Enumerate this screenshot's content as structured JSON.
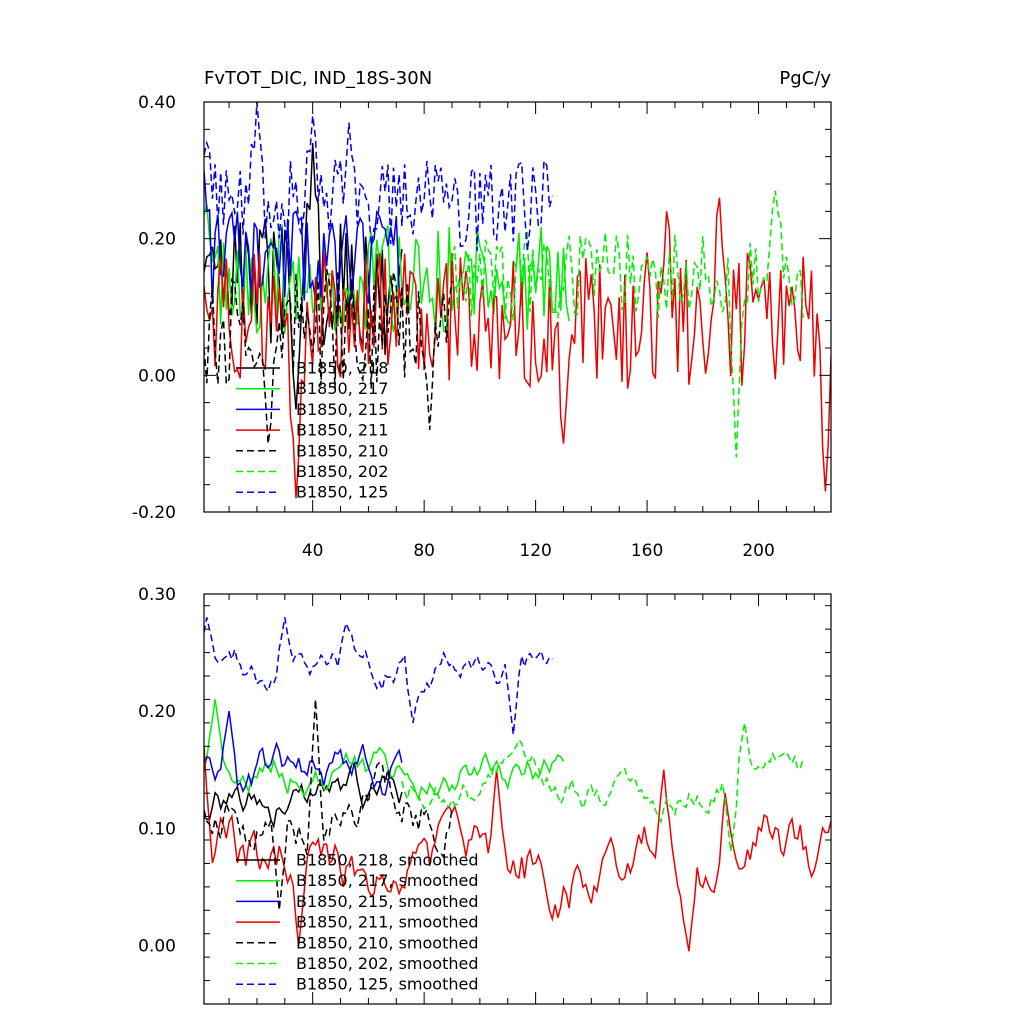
{
  "chart_data": [
    {
      "type": "line",
      "title": "FvTOT_DIC, IND_18S-30N",
      "units": "PgC/y",
      "xlim": [
        1,
        226
      ],
      "ylim": [
        -0.2,
        0.4
      ],
      "xticks": [
        40,
        80,
        120,
        160,
        200
      ],
      "xtick_labels": [
        "40",
        "80",
        "120",
        "160",
        "200"
      ],
      "yticks": [
        -0.2,
        0.0,
        0.2,
        0.4
      ],
      "ytick_labels": [
        "-0.20",
        "0.00",
        "0.20",
        "0.40"
      ],
      "legend_position": "bottom-left",
      "series": [
        {
          "name": "B1850, 218",
          "color": "#000000",
          "dash": "solid",
          "x_start": 1,
          "x_end": 72,
          "base": 0.13,
          "amp": 0.1,
          "seed": 3,
          "peaks": [
            [
              40,
              0.34
            ],
            [
              34,
              -0.05
            ]
          ]
        },
        {
          "name": "B1850, 217",
          "color": "#00ee00",
          "dash": "solid",
          "x_start": 1,
          "x_end": 132,
          "base": 0.14,
          "amp": 0.08,
          "seed": 7,
          "peaks": [
            [
              2,
              0.25
            ]
          ]
        },
        {
          "name": "B1850, 215",
          "color": "#0000ee",
          "dash": "solid",
          "x_start": 1,
          "x_end": 72,
          "base": 0.17,
          "amp": 0.07,
          "seed": 11,
          "peaks": [
            [
              1,
              0.3
            ]
          ]
        },
        {
          "name": "B1850, 211",
          "color": "#ee0000",
          "dash": "solid",
          "x_start": 1,
          "x_end": 226,
          "base": 0.08,
          "amp": 0.1,
          "seed": 5,
          "peaks": [
            [
              34,
              -0.18
            ],
            [
              224,
              -0.17
            ],
            [
              130,
              -0.1
            ],
            [
              186,
              0.26
            ],
            [
              167,
              0.24
            ]
          ]
        },
        {
          "name": "B1850, 210",
          "color": "#000000",
          "dash": "dashed",
          "x_start": 1,
          "x_end": 90,
          "base": 0.07,
          "amp": 0.09,
          "seed": 13,
          "peaks": [
            [
              24,
              -0.1
            ],
            [
              82,
              -0.08
            ]
          ]
        },
        {
          "name": "B1850, 202",
          "color": "#00ee00",
          "dash": "dashed",
          "x_start": 90,
          "x_end": 216,
          "base": 0.15,
          "amp": 0.07,
          "seed": 17,
          "peaks": [
            [
              192,
              -0.12
            ],
            [
              206,
              0.27
            ]
          ]
        },
        {
          "name": "B1850, 125",
          "color": "#0000ee",
          "dash": "dashed",
          "x_start": 1,
          "x_end": 126,
          "base": 0.25,
          "amp": 0.07,
          "seed": 19,
          "peaks": [
            [
              20,
              0.4
            ],
            [
              40,
              0.38
            ],
            [
              53,
              0.37
            ],
            [
              2,
              0.34
            ]
          ]
        }
      ]
    },
    {
      "type": "line",
      "title": "",
      "xlim": [
        1,
        226
      ],
      "ylim": [
        -0.05,
        0.3
      ],
      "xticks": [
        40,
        80,
        120,
        160,
        200
      ],
      "xtick_labels": [],
      "yticks": [
        0.0,
        0.1,
        0.2,
        0.3
      ],
      "ytick_labels": [
        "0.00",
        "0.10",
        "0.20",
        "0.30"
      ],
      "legend_position": "bottom-left",
      "series": [
        {
          "name": "B1850, 218, smoothed",
          "color": "#000000",
          "dash": "solid",
          "x_start": 1,
          "x_end": 72,
          "base": 0.12,
          "amp": 0.03,
          "seed": 23,
          "peaks": []
        },
        {
          "name": "B1850, 217, smoothed",
          "color": "#00ee00",
          "dash": "solid",
          "x_start": 1,
          "x_end": 130,
          "base": 0.15,
          "amp": 0.025,
          "seed": 29,
          "peaks": [
            [
              5,
              0.21
            ]
          ]
        },
        {
          "name": "B1850, 215, smoothed",
          "color": "#0000ee",
          "dash": "solid",
          "x_start": 1,
          "x_end": 72,
          "base": 0.15,
          "amp": 0.03,
          "seed": 31,
          "peaks": [
            [
              10,
              0.2
            ]
          ]
        },
        {
          "name": "B1850, 211, smoothed",
          "color": "#ee0000",
          "dash": "solid",
          "x_start": 1,
          "x_end": 226,
          "base": 0.07,
          "amp": 0.045,
          "seed": 37,
          "peaks": [
            [
              1,
              0.17
            ],
            [
              35,
              0.0
            ],
            [
              106,
              0.15
            ],
            [
              166,
              0.15
            ],
            [
              175,
              -0.005
            ],
            [
              188,
              0.13
            ]
          ]
        },
        {
          "name": "B1850, 210, smoothed",
          "color": "#000000",
          "dash": "dashed",
          "x_start": 1,
          "x_end": 90,
          "base": 0.12,
          "amp": 0.04,
          "seed": 41,
          "peaks": [
            [
              41,
              0.21
            ],
            [
              28,
              0.03
            ]
          ]
        },
        {
          "name": "B1850, 202, smoothed",
          "color": "#00ee00",
          "dash": "dashed",
          "x_start": 72,
          "x_end": 216,
          "base": 0.14,
          "amp": 0.025,
          "seed": 43,
          "peaks": [
            [
              195,
              0.19
            ],
            [
              190,
              0.08
            ]
          ]
        },
        {
          "name": "B1850, 125, smoothed",
          "color": "#0000ee",
          "dash": "dashed",
          "x_start": 1,
          "x_end": 126,
          "base": 0.235,
          "amp": 0.025,
          "seed": 47,
          "peaks": [
            [
              2,
              0.28
            ],
            [
              30,
              0.28
            ],
            [
              52,
              0.275
            ],
            [
              76,
              0.19
            ],
            [
              112,
              0.18
            ]
          ]
        }
      ]
    }
  ]
}
